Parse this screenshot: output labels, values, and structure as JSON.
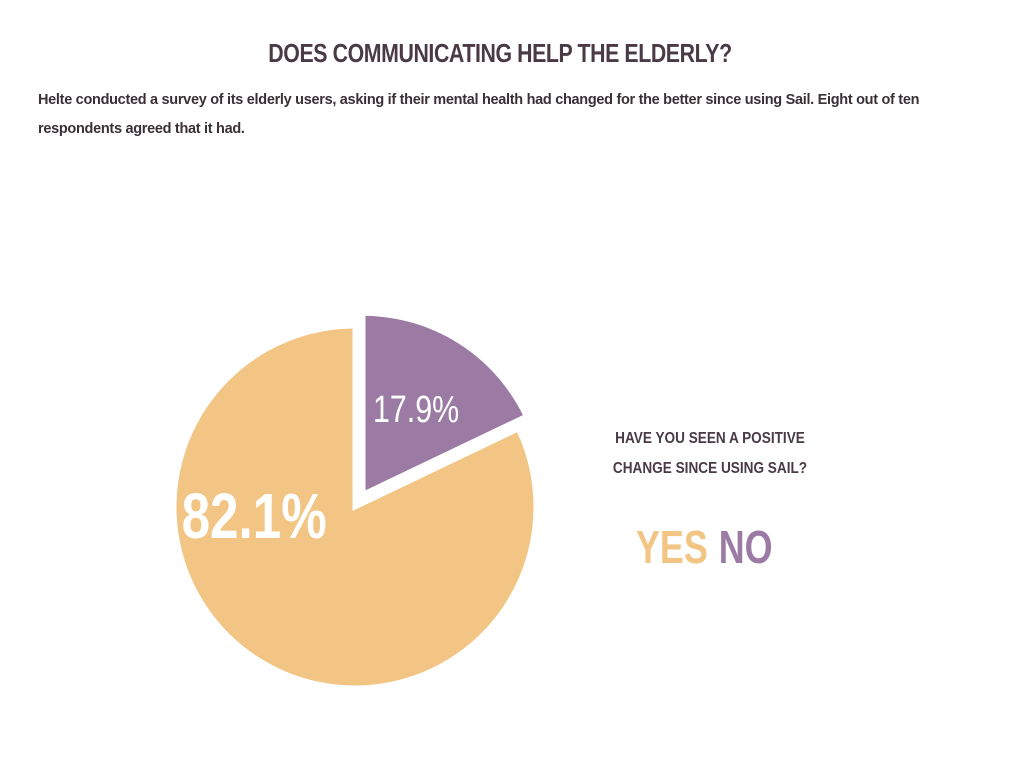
{
  "header": {
    "title": "DOES COMMUNICATING HELP THE ELDERLY?",
    "description": "Helte conducted a survey of its elderly users, asking if their mental health had changed for the better since using Sail. Eight out of ten respondents agreed that it had."
  },
  "question": {
    "line1": "HAVE YOU SEEN A POSITIVE",
    "line2": "CHANGE SINCE USING SAIL?"
  },
  "legend": {
    "yes_label": "YES",
    "no_label": "NO"
  },
  "colors": {
    "yes": "#f2c584",
    "no": "#9b7ba3",
    "text_dark": "#4a3a44"
  },
  "chart_data": {
    "type": "pie",
    "exploded": "NO",
    "slices": [
      {
        "label": "NO",
        "value": 17.9,
        "display": "17.9%",
        "color": "#9b7ba3"
      },
      {
        "label": "YES",
        "value": 82.1,
        "display": "82.1%",
        "color": "#f2c584"
      }
    ]
  }
}
